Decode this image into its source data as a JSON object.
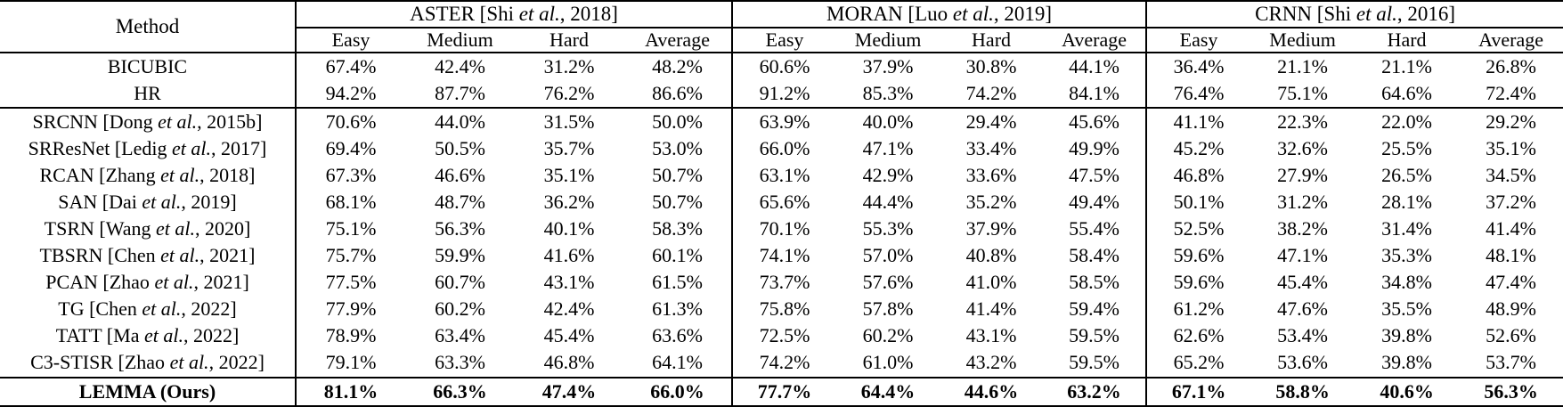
{
  "colors": {
    "text": "#000000",
    "background": "#ffffff",
    "border": "#000000"
  },
  "table": {
    "method_header": "Method",
    "groups": [
      {
        "pre": "ASTER [Shi ",
        "it": "et al.",
        "post": ", 2018]"
      },
      {
        "pre": "MORAN [Luo ",
        "it": "et al.",
        "post": ", 2019]"
      },
      {
        "pre": "CRNN [Shi ",
        "it": "et al.",
        "post": ", 2016]"
      }
    ],
    "subcolumns": [
      "Easy",
      "Medium",
      "Hard",
      "Average"
    ],
    "sections": [
      {
        "bold": false,
        "rows": [
          {
            "method": {
              "pre": "BICUBIC",
              "it": "",
              "post": ""
            },
            "values": [
              "67.4%",
              "42.4%",
              "31.2%",
              "48.2%",
              "60.6%",
              "37.9%",
              "30.8%",
              "44.1%",
              "36.4%",
              "21.1%",
              "21.1%",
              "26.8%"
            ]
          },
          {
            "method": {
              "pre": "HR",
              "it": "",
              "post": ""
            },
            "values": [
              "94.2%",
              "87.7%",
              "76.2%",
              "86.6%",
              "91.2%",
              "85.3%",
              "74.2%",
              "84.1%",
              "76.4%",
              "75.1%",
              "64.6%",
              "72.4%"
            ]
          }
        ]
      },
      {
        "bold": false,
        "rows": [
          {
            "method": {
              "pre": "SRCNN [Dong ",
              "it": "et al.",
              "post": ", 2015b]"
            },
            "values": [
              "70.6%",
              "44.0%",
              "31.5%",
              "50.0%",
              "63.9%",
              "40.0%",
              "29.4%",
              "45.6%",
              "41.1%",
              "22.3%",
              "22.0%",
              "29.2%"
            ]
          },
          {
            "method": {
              "pre": "SRResNet [Ledig ",
              "it": "et al.",
              "post": ", 2017]"
            },
            "values": [
              "69.4%",
              "50.5%",
              "35.7%",
              "53.0%",
              "66.0%",
              "47.1%",
              "33.4%",
              "49.9%",
              "45.2%",
              "32.6%",
              "25.5%",
              "35.1%"
            ]
          },
          {
            "method": {
              "pre": "RCAN [Zhang ",
              "it": "et al.",
              "post": ", 2018]"
            },
            "values": [
              "67.3%",
              "46.6%",
              "35.1%",
              "50.7%",
              "63.1%",
              "42.9%",
              "33.6%",
              "47.5%",
              "46.8%",
              "27.9%",
              "26.5%",
              "34.5%"
            ]
          },
          {
            "method": {
              "pre": "SAN [Dai ",
              "it": "et al.",
              "post": ", 2019]"
            },
            "values": [
              "68.1%",
              "48.7%",
              "36.2%",
              "50.7%",
              "65.6%",
              "44.4%",
              "35.2%",
              "49.4%",
              "50.1%",
              "31.2%",
              "28.1%",
              "37.2%"
            ]
          },
          {
            "method": {
              "pre": "TSRN [Wang ",
              "it": "et al.",
              "post": ", 2020]"
            },
            "values": [
              "75.1%",
              "56.3%",
              "40.1%",
              "58.3%",
              "70.1%",
              "55.3%",
              "37.9%",
              "55.4%",
              "52.5%",
              "38.2%",
              "31.4%",
              "41.4%"
            ]
          },
          {
            "method": {
              "pre": "TBSRN [Chen ",
              "it": "et al.",
              "post": ", 2021]"
            },
            "values": [
              "75.7%",
              "59.9%",
              "41.6%",
              "60.1%",
              "74.1%",
              "57.0%",
              "40.8%",
              "58.4%",
              "59.6%",
              "47.1%",
              "35.3%",
              "48.1%"
            ]
          },
          {
            "method": {
              "pre": "PCAN [Zhao ",
              "it": "et al.",
              "post": ", 2021]"
            },
            "values": [
              "77.5%",
              "60.7%",
              "43.1%",
              "61.5%",
              "73.7%",
              "57.6%",
              "41.0%",
              "58.5%",
              "59.6%",
              "45.4%",
              "34.8%",
              "47.4%"
            ]
          },
          {
            "method": {
              "pre": "TG [Chen ",
              "it": "et al.",
              "post": ", 2022]"
            },
            "values": [
              "77.9%",
              "60.2%",
              "42.4%",
              "61.3%",
              "75.8%",
              "57.8%",
              "41.4%",
              "59.4%",
              "61.2%",
              "47.6%",
              "35.5%",
              "48.9%"
            ]
          },
          {
            "method": {
              "pre": "TATT [Ma ",
              "it": "et al.",
              "post": ", 2022]"
            },
            "values": [
              "78.9%",
              "63.4%",
              "45.4%",
              "63.6%",
              "72.5%",
              "60.2%",
              "43.1%",
              "59.5%",
              "62.6%",
              "53.4%",
              "39.8%",
              "52.6%"
            ]
          },
          {
            "method": {
              "pre": "C3-STISR [Zhao ",
              "it": "et al.",
              "post": ", 2022]"
            },
            "values": [
              "79.1%",
              "63.3%",
              "46.8%",
              "64.1%",
              "74.2%",
              "61.0%",
              "43.2%",
              "59.5%",
              "65.2%",
              "53.6%",
              "39.8%",
              "53.7%"
            ]
          }
        ]
      },
      {
        "bold": true,
        "rows": [
          {
            "method": {
              "pre": "LEMMA (Ours)",
              "it": "",
              "post": ""
            },
            "values": [
              "81.1%",
              "66.3%",
              "47.4%",
              "66.0%",
              "77.7%",
              "64.4%",
              "44.6%",
              "63.2%",
              "67.1%",
              "58.8%",
              "40.6%",
              "56.3%"
            ]
          }
        ]
      }
    ]
  }
}
